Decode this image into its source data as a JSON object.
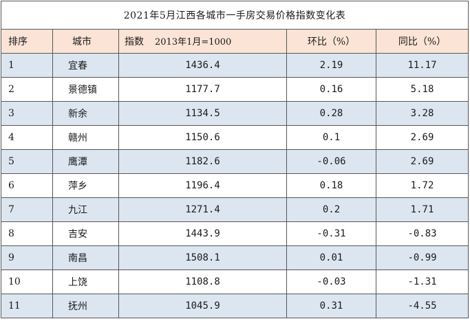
{
  "title": "2021年5月江西各城市一手房交易价格指数变化表",
  "headers": {
    "rank": "排序",
    "city": "城市",
    "index": "指数",
    "index_note": "2013年1月=1000",
    "mom": "环比（%）",
    "yoy": "同比（%）"
  },
  "rows": [
    {
      "rank": "1",
      "city": "宜春",
      "index": "1436.4",
      "mom": "2.19",
      "yoy": "11.17"
    },
    {
      "rank": "2",
      "city": "景德镇",
      "index": "1177.7",
      "mom": "0.16",
      "yoy": "5.18"
    },
    {
      "rank": "3",
      "city": "新余",
      "index": "1134.5",
      "mom": "0.28",
      "yoy": "3.28"
    },
    {
      "rank": "4",
      "city": "赣州",
      "index": "1150.6",
      "mom": "0.1",
      "yoy": "2.69"
    },
    {
      "rank": "5",
      "city": "鹰潭",
      "index": "1182.6",
      "mom": "-0.06",
      "yoy": "2.69"
    },
    {
      "rank": "6",
      "city": "萍乡",
      "index": "1196.4",
      "mom": "0.18",
      "yoy": "1.72"
    },
    {
      "rank": "7",
      "city": "九江",
      "index": "1271.4",
      "mom": "0.2",
      "yoy": "1.71"
    },
    {
      "rank": "8",
      "city": "吉安",
      "index": "1443.9",
      "mom": "-0.31",
      "yoy": "-0.83"
    },
    {
      "rank": "9",
      "city": "南昌",
      "index": "1508.1",
      "mom": "0.01",
      "yoy": "-0.99"
    },
    {
      "rank": "10",
      "city": "上饶",
      "index": "1108.8",
      "mom": "-0.03",
      "yoy": "-1.31"
    },
    {
      "rank": "11",
      "city": "抚州",
      "index": "1045.9",
      "mom": "0.31",
      "yoy": "-4.55"
    }
  ],
  "colors": {
    "header_bg": "#fbe4d5",
    "shaded_row_bg": "#dce6f1",
    "plain_row_bg": "#ffffff",
    "border": "#555555"
  }
}
